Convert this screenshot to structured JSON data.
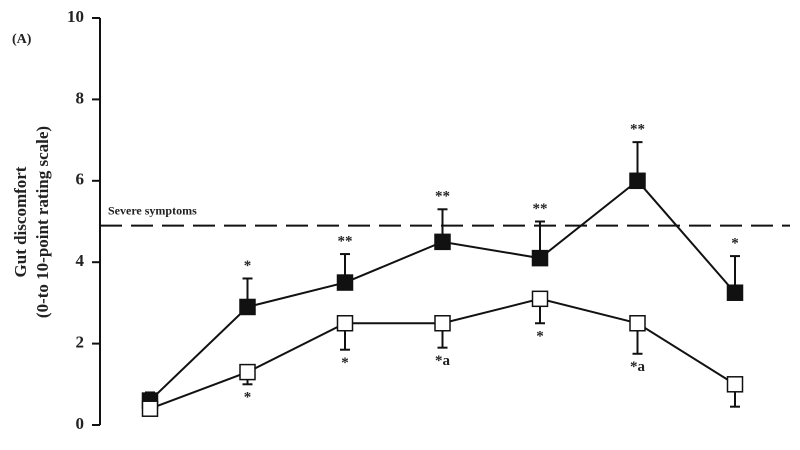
{
  "chart_data": {
    "type": "line",
    "panel_label": "(A)",
    "y_label": [
      "Gut discomfort",
      "(0-to 10-point rating scale)"
    ],
    "categories": [
      null,
      null,
      null,
      null,
      null,
      null,
      null
    ],
    "ylim": [
      0,
      10
    ],
    "yticks": [
      0,
      2,
      4,
      6,
      8,
      10
    ],
    "reference_line": {
      "value": 4.9,
      "label": "Severe symptoms"
    },
    "series": [
      {
        "color": "#111111",
        "marker": "filled-square",
        "error_direction": "up",
        "values": [
          0.6,
          2.9,
          3.5,
          4.5,
          4.1,
          6.0,
          3.25
        ],
        "errors": [
          0.2,
          0.7,
          0.7,
          0.8,
          0.9,
          0.95,
          0.9
        ],
        "annotations": [
          null,
          "*",
          "**",
          "**",
          "**",
          "**",
          "*"
        ]
      },
      {
        "color": "#111111",
        "marker": "open-square",
        "error_direction": "down",
        "values": [
          0.4,
          1.3,
          2.5,
          2.5,
          3.1,
          2.5,
          1.0
        ],
        "errors": [
          0.1,
          0.3,
          0.65,
          0.6,
          0.6,
          0.75,
          0.55
        ],
        "annotations": [
          null,
          "*",
          "*",
          "*a",
          "*",
          "*a",
          null
        ]
      }
    ]
  }
}
